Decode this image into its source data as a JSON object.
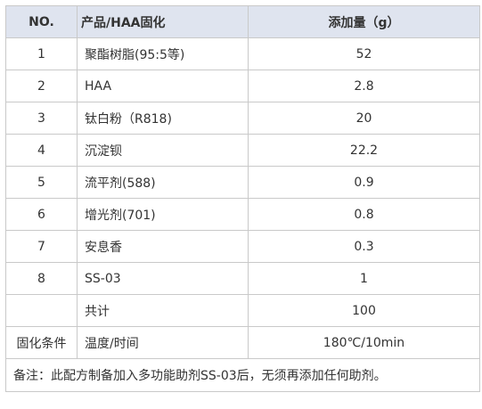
{
  "table": {
    "headers": [
      "NO.",
      "产品/HAA固化",
      "添加量（g）"
    ],
    "rows": [
      {
        "no": "1",
        "name": "聚酯树脂(95:5等)",
        "amount": "52"
      },
      {
        "no": "2",
        "name": "HAA",
        "amount": "2.8"
      },
      {
        "no": "3",
        "name": "钛白粉（R818)",
        "amount": "20"
      },
      {
        "no": "4",
        "name": "沉淀钡",
        "amount": "22.2"
      },
      {
        "no": "5",
        "name": "流平剂(588)",
        "amount": "0.9"
      },
      {
        "no": "6",
        "name": "增光剂(701)",
        "amount": "0.8"
      },
      {
        "no": "7",
        "name": "安息香",
        "amount": "0.3"
      },
      {
        "no": "8",
        "name": "SS-03",
        "amount": "1"
      }
    ],
    "total": {
      "no": "",
      "name": "共计",
      "amount": "100"
    },
    "cure": {
      "no": "固化条件",
      "name": "温度/时间",
      "amount": "180℃/10min"
    },
    "note": "备注：此配方制备加入多功能助剂SS-03后，无须再添加任何助剂。",
    "colors": {
      "header_bg": "#dfe4ef",
      "border": "#c9c9c9",
      "text": "#333333"
    }
  }
}
